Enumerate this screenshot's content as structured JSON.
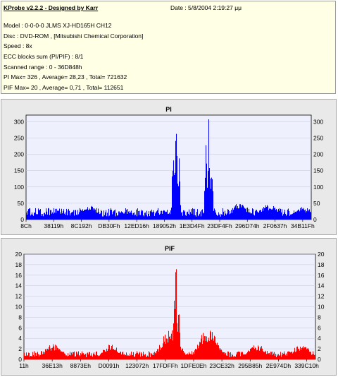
{
  "info": {
    "title": "KProbe v2.2.2 - Designed by Karr",
    "date": "Date : 5/8/2004 2:19:27 μμ",
    "model": "Model : 0-0-0-0 JLMS    XJ-HD165H    CH12",
    "disc": "Disc : DVD-ROM ,  [Mitsubishi Chemical Corporation]",
    "speed": "Speed : 8x",
    "ecc": "ECC blocks sum (PI/PIF) : 8/1",
    "range": "Scanned range : 0 - 36D848h",
    "pi_stats": "PI Max= 326 , Average= 28,23 , Total= 721632",
    "pif_stats": "PIF Max= 20 , Average= 0,71 , Total= 112651"
  },
  "colors": {
    "plot_bg": "#eef0fe",
    "pi": "#0000ff",
    "pif": "#ff0000",
    "panel_bg": "#e9e9e9"
  },
  "chart_data": [
    {
      "type": "bar",
      "title": "PI",
      "ylim": [
        0,
        320
      ],
      "yticks": [
        0,
        50,
        100,
        150,
        200,
        250,
        300
      ],
      "xticks": [
        "8Ch",
        "38119h",
        "8C192h",
        "DB30Fh",
        "12ED16h",
        "189052h",
        "1E3D4Fh",
        "23DF4Fh",
        "296D74h",
        "2F0637h",
        "34B11Fh"
      ],
      "series": [
        {
          "color": "#0000ff",
          "baseline": 22,
          "peaks": [
            {
              "x": 0.03,
              "y": 20
            },
            {
              "x": 0.12,
              "y": 28
            },
            {
              "x": 0.22,
              "y": 45
            },
            {
              "x": 0.35,
              "y": 30
            },
            {
              "x": 0.48,
              "y": 22
            },
            {
              "x": 0.515,
              "y": 230
            },
            {
              "x": 0.525,
              "y": 326
            },
            {
              "x": 0.535,
              "y": 200
            },
            {
              "x": 0.63,
              "y": 240
            },
            {
              "x": 0.64,
              "y": 310
            },
            {
              "x": 0.65,
              "y": 180
            },
            {
              "x": 0.75,
              "y": 55
            },
            {
              "x": 0.85,
              "y": 50
            },
            {
              "x": 0.97,
              "y": 40
            }
          ]
        }
      ]
    },
    {
      "type": "bar",
      "title": "PIF",
      "ylim": [
        0,
        20
      ],
      "yticks": [
        0,
        2,
        4,
        6,
        8,
        10,
        12,
        14,
        16,
        18,
        20
      ],
      "xticks": [
        "11h",
        "36E13h",
        "8873Eh",
        "D0091h",
        "123072h",
        "17FDFFh",
        "1DFE0Eh",
        "23CE32h",
        "295B85h",
        "2E974Dh",
        "339C10h"
      ],
      "series": [
        {
          "color": "#ff0000",
          "baseline": 1,
          "peaks": [
            {
              "x": 0.1,
              "y": 3
            },
            {
              "x": 0.3,
              "y": 3
            },
            {
              "x": 0.5,
              "y": 6
            },
            {
              "x": 0.515,
              "y": 12
            },
            {
              "x": 0.52,
              "y": 20
            },
            {
              "x": 0.53,
              "y": 10
            },
            {
              "x": 0.63,
              "y": 6
            },
            {
              "x": 0.64,
              "y": 4
            },
            {
              "x": 0.8,
              "y": 3
            },
            {
              "x": 0.95,
              "y": 3
            }
          ]
        }
      ]
    }
  ]
}
